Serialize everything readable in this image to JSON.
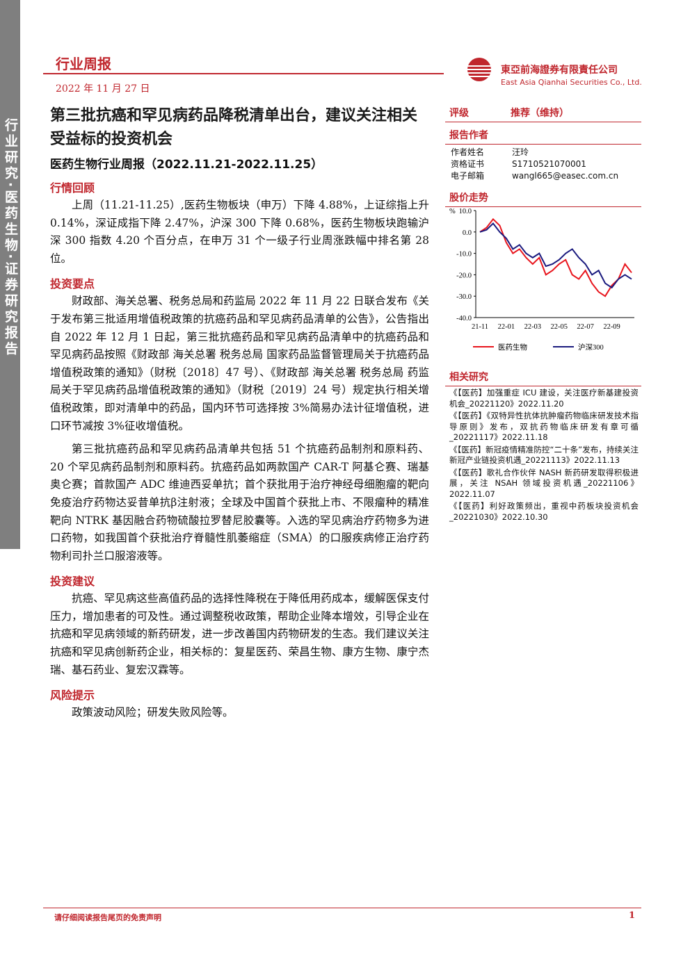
{
  "sidebar": "行业研究·医药生物·证券研究报告",
  "header": {
    "report_type": "行业周报",
    "date": "2022 年 11 月 27 日",
    "company_cn": "東亞前海證券有限責任公司",
    "company_en": "East Asia Qianhai Securities Co., Ltd."
  },
  "title": "第三批抗癌和罕见病药品降税清单出台，建议关注相关受益标的投资机会",
  "subtitle": "医药生物行业周报（2022.11.21-2022.11.25）",
  "sections": [
    {
      "heading": "行情回顾",
      "paragraphs": [
        "上周（11.21-11.25）,医药生物板块（申万）下降 4.88%，上证综指上升 0.14%，深证成指下降 2.47%，沪深 300 下降 0.68%，医药生物板块跑输沪深 300 指数 4.20 个百分点，在申万 31 个一级子行业周涨跌幅中排名第 28 位。"
      ]
    },
    {
      "heading": "投资要点",
      "paragraphs": [
        "财政部、海关总署、税务总局和药监局 2022 年 11 月 22 日联合发布《关于发布第三批适用增值税政策的抗癌药品和罕见病药品清单的公告》，公告指出自 2022 年 12 月 1 日起，第三批抗癌药品和罕见病药品清单中的抗癌药品和罕见病药品按照《财政部 海关总署 税务总局 国家药品监督管理局关于抗癌药品增值税政策的通知》（财税〔2018〕47 号）、《财政部 海关总署 税务总局 药监局关于罕见病药品增值税政策的通知》（财税〔2019〕24 号）规定执行相关增值税政策，即对清单中的药品，国内环节可选择按 3%简易办法计征增值税，进口环节减按 3%征收增值税。",
        "第三批抗癌药品和罕见病药品清单共包括 51 个抗癌药品制剂和原料药、20 个罕见病药品制剂和原料药。抗癌药品如两款国产 CAR-T 阿基仑赛、瑞基奥仑赛；首款国产 ADC 维迪西妥单抗；首个获批用于治疗神经母细胞瘤的靶向免疫治疗药物达妥昔单抗β注射液；全球及中国首个获批上市、不限瘤种的精准靶向 NTRK 基因融合药物硫酸拉罗替尼胶囊等。入选的罕见病治疗药物多为进口药物，如我国首个获批治疗脊髓性肌萎缩症（SMA）的口服疾病修正治疗药物利司扑兰口服溶液等。"
      ]
    },
    {
      "heading": "投资建议",
      "paragraphs": [
        "抗癌、罕见病这些高值药品的选择性降税在于降低用药成本，缓解医保支付压力，增加患者的可及性。通过调整税收政策，帮助企业降本增效，引导企业在抗癌和罕见病领域的新药研发，进一步改善国内药物研发的生态。我们建议关注抗癌和罕见病创新药企业，相关标的：复星医药、荣昌生物、康方生物、康宁杰瑞、基石药业、复宏汉霖等。"
      ]
    },
    {
      "heading": "风险提示",
      "paragraphs": [
        "政策波动风险；研发失败风险等。"
      ]
    }
  ],
  "rating": {
    "label": "评级",
    "value": "推荐（维持）"
  },
  "authors": {
    "heading": "报告作者",
    "rows": [
      [
        "作者姓名",
        "汪玲"
      ],
      [
        "资格证书",
        "S1710521070001"
      ],
      [
        "电子邮箱",
        "wangl665@easec.com.cn"
      ]
    ]
  },
  "chart_data": {
    "type": "line",
    "title": "股价走势",
    "y_unit": "%",
    "categories": [
      "21-11",
      null,
      null,
      null,
      "22-01",
      null,
      null,
      null,
      "22-03",
      null,
      null,
      null,
      "22-05",
      null,
      null,
      null,
      "22-07",
      null,
      null,
      null,
      "22-09",
      null,
      null,
      null
    ],
    "series": [
      {
        "name": "医药生物",
        "color": "#e8141c",
        "values": [
          0,
          2,
          6,
          3,
          -5,
          -10,
          -8,
          -12,
          -15,
          -12,
          -20,
          -18,
          -15,
          -13,
          -20,
          -22,
          -18,
          -24,
          -28,
          -30,
          -25,
          -22,
          -15,
          -19
        ]
      },
      {
        "name": "沪深300",
        "color": "#1a1a7e",
        "values": [
          0,
          1,
          4,
          0,
          -3,
          -8,
          -6,
          -10,
          -12,
          -10,
          -16,
          -15,
          -13,
          -10,
          -8,
          -12,
          -15,
          -20,
          -18,
          -24,
          -26,
          -22,
          -20,
          -22
        ]
      }
    ],
    "ylim": [
      -40,
      10
    ],
    "yticks": [
      {
        "value": 10,
        "label": "10.0"
      },
      {
        "value": 0,
        "label": "0.0"
      },
      {
        "value": -10,
        "label": "-10.0"
      },
      {
        "value": -20,
        "label": "-20.0"
      },
      {
        "value": -30,
        "label": "-30.0"
      },
      {
        "value": -40,
        "label": "-40.0"
      }
    ]
  },
  "related": {
    "heading": "相关研究",
    "items": [
      "《【医药】加强重症 ICU 建设，关注医疗新基建投资机会_20221120》2022.11.20",
      "《【医药】《双特异性抗体抗肿瘤药物临床研发技术指导原则》发布，双抗药物临床研发有章可循_20221117》2022.11.18",
      "《【医药】新冠疫情精准防控“二十条”发布，持续关注新冠产业链投资机遇_20221113》2022.11.13",
      "《【医药】歌礼合作伙伴 NASH 新药研发取得积极进展，关注 NSAH 领域投资机遇_20221106》2022.11.07",
      "《【医药】利好政策频出，重视中药板块投资机会_20221030》2022.10.30"
    ]
  },
  "footer": {
    "disclaimer": "请仔细阅读报告尾页的免责声明",
    "page": "1"
  }
}
